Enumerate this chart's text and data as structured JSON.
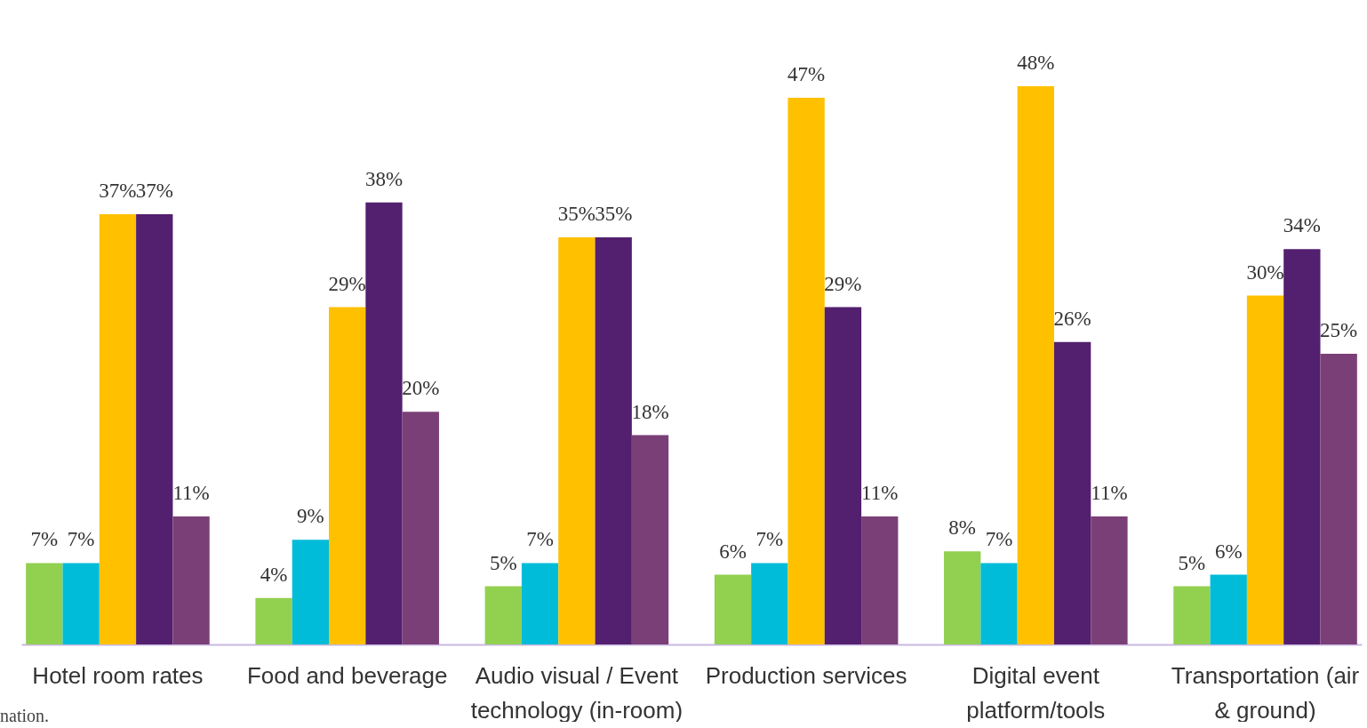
{
  "chart_data": {
    "type": "bar",
    "categories": [
      "Hotel room rates",
      "Food and beverage",
      "Audio visual / Event technology (in-room)",
      "Production services",
      "Digital event platform/tools",
      "Transportation (air & ground)"
    ],
    "series": [
      {
        "color": "#92d050",
        "values": [
          7,
          4,
          5,
          6,
          8,
          5
        ],
        "value_labels": [
          "7%",
          "4%",
          "5%",
          "6%",
          "8%",
          "5%"
        ]
      },
      {
        "color": "#00bcd9",
        "values": [
          7,
          9,
          7,
          7,
          7,
          6
        ],
        "value_labels": [
          "7%",
          "9%",
          "7%",
          "7%",
          "7%",
          "6%"
        ]
      },
      {
        "color": "#ffc000",
        "values": [
          37,
          29,
          35,
          47,
          48,
          30
        ],
        "value_labels": [
          "37%",
          "29%",
          "35%",
          "47%",
          "48%",
          "30%"
        ]
      },
      {
        "color": "#531f6f",
        "values": [
          37,
          38,
          35,
          29,
          26,
          34
        ],
        "value_labels": [
          "37%",
          "38%",
          "35%",
          "29%",
          "26%",
          "34%"
        ]
      },
      {
        "color": "#7b3f77",
        "values": [
          11,
          20,
          18,
          11,
          11,
          25
        ],
        "value_labels": [
          "11%",
          "20%",
          "18%",
          "11%",
          "11%",
          "25%"
        ]
      }
    ],
    "annotations": [
      "nation."
    ],
    "grid": false,
    "legend": false
  }
}
